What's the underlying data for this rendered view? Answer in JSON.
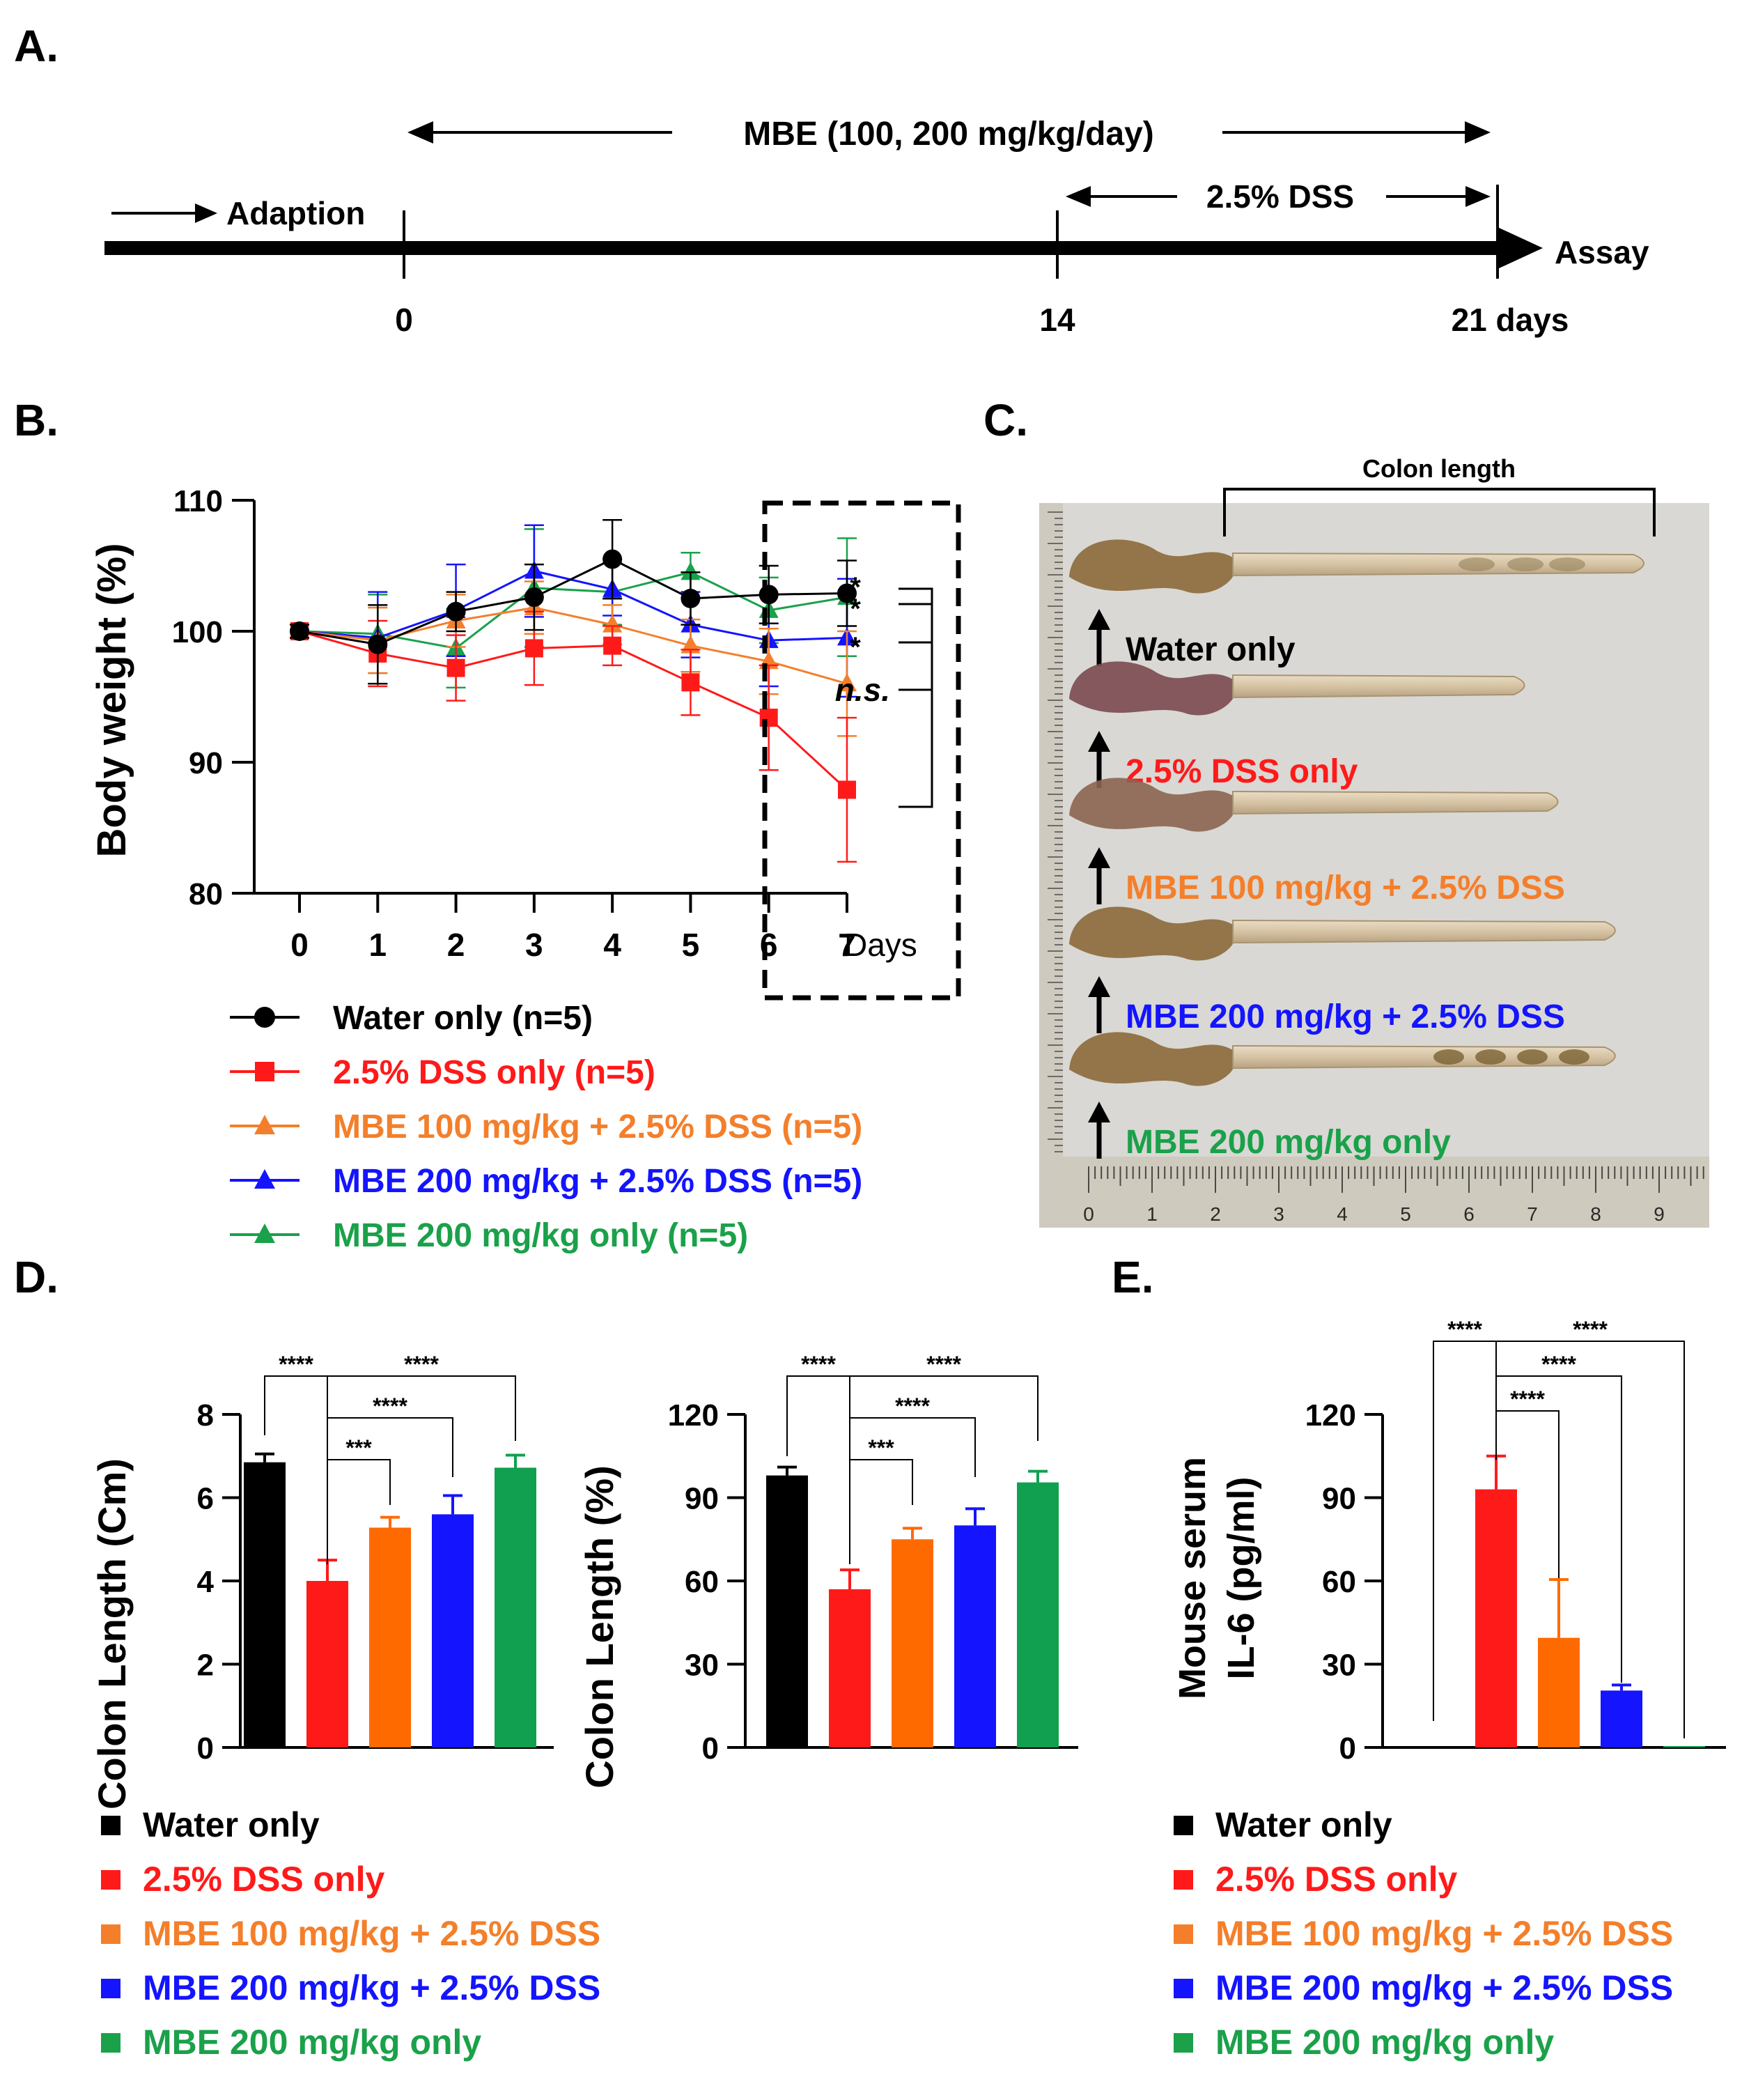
{
  "panel_labels": {
    "a": "A.",
    "b": "B.",
    "c": "C.",
    "d": "D.",
    "e": "E."
  },
  "colors": {
    "water": "#000000",
    "dss": "#ff1a1a",
    "mbe100": "#f47f2b",
    "mbe200dss": "#1414ff",
    "mbe200": "#1aa14a",
    "bar_mbe100": "#ff6a00",
    "bar_mbe200": "#10a050"
  },
  "timeline": {
    "mbe_label": "MBE (100, 200 mg/kg/day)",
    "dss_label": "2.5% DSS",
    "adaption_label": "Adaption",
    "assay_label": "Assay",
    "ticks": [
      "0",
      "14",
      "21 days"
    ]
  },
  "legend_b": [
    {
      "label": "Water only (n=5)",
      "marker": "circle",
      "color": "#000000"
    },
    {
      "label": "2.5% DSS only (n=5)",
      "marker": "square",
      "color": "#ff1a1a"
    },
    {
      "label": "MBE 100 mg/kg + 2.5% DSS (n=5)",
      "marker": "triangle",
      "color": "#f47f2b"
    },
    {
      "label": "MBE 200 mg/kg + 2.5% DSS (n=5)",
      "marker": "triangle",
      "color": "#1414ff"
    },
    {
      "label": "MBE 200 mg/kg only (n=5)",
      "marker": "triangle",
      "color": "#1aa14a"
    }
  ],
  "legend_groups": [
    {
      "label": "Water only",
      "color": "#000000"
    },
    {
      "label": "2.5% DSS only",
      "color": "#ff1a1a"
    },
    {
      "label": "MBE 100 mg/kg + 2.5% DSS",
      "color": "#f47f2b"
    },
    {
      "label": "MBE 200 mg/kg + 2.5% DSS",
      "color": "#1414ff"
    },
    {
      "label": "MBE 200 mg/kg only",
      "color": "#1aa14a"
    }
  ],
  "photo": {
    "header": "Colon length",
    "labels": [
      {
        "text": "Water only",
        "color": "#000000"
      },
      {
        "text": "2.5% DSS only",
        "color": "#ff1a1a"
      },
      {
        "text": "MBE 100 mg/kg + 2.5% DSS",
        "color": "#f47f2b"
      },
      {
        "text": "MBE 200 mg/kg + 2.5% DSS",
        "color": "#1414ff"
      },
      {
        "text": "MBE 200 mg/kg only",
        "color": "#1aa14a"
      }
    ],
    "lengths": [
      9.0,
      6.5,
      7.2,
      8.4,
      8.4
    ],
    "ruler_ticks": [
      "0",
      "1",
      "2",
      "3",
      "4",
      "5",
      "6",
      "7",
      "8",
      "9"
    ]
  },
  "chart_data": [
    {
      "id": "body_weight",
      "type": "line",
      "xlabel": "Days",
      "ylabel": "Body weight (%)",
      "x": [
        0,
        1,
        2,
        3,
        4,
        5,
        6,
        7
      ],
      "xlim": [
        0,
        7
      ],
      "ylim": [
        80,
        110
      ],
      "yticks": [
        80,
        90,
        100,
        110
      ],
      "series": [
        {
          "name": "Water only (n=5)",
          "color": "#000000",
          "marker": "circle",
          "values": [
            100,
            99.0,
            101.5,
            102.6,
            105.5,
            102.5,
            102.8,
            102.9
          ],
          "errors": [
            0.5,
            3.0,
            1.5,
            2.5,
            3.0,
            2.0,
            2.2,
            2.5
          ]
        },
        {
          "name": "2.5% DSS only (n=5)",
          "color": "#ff1a1a",
          "marker": "square",
          "values": [
            100,
            98.3,
            97.2,
            98.7,
            98.9,
            96.1,
            93.4,
            87.9
          ],
          "errors": [
            0.5,
            2.5,
            2.5,
            2.8,
            1.5,
            2.5,
            4.0,
            5.5
          ]
        },
        {
          "name": "MBE 100 mg/kg + 2.5% DSS (n=5)",
          "color": "#f47f2b",
          "marker": "triangle",
          "values": [
            100,
            99.3,
            100.8,
            101.8,
            100.5,
            98.9,
            97.7,
            96.0
          ],
          "errors": [
            0.5,
            2.5,
            2.0,
            2.0,
            1.5,
            2.0,
            2.5,
            4.0
          ]
        },
        {
          "name": "MBE 200 mg/kg + 2.5% DSS (n=5)",
          "color": "#1414ff",
          "marker": "triangle",
          "values": [
            100,
            99.5,
            101.6,
            104.6,
            103.2,
            100.5,
            99.3,
            99.5
          ],
          "errors": [
            0.5,
            3.5,
            3.5,
            3.5,
            2.0,
            2.5,
            3.5,
            4.5
          ]
        },
        {
          "name": "MBE 200 mg/kg only (n=5)",
          "color": "#1aa14a",
          "marker": "triangle",
          "values": [
            100,
            99.8,
            98.7,
            103.3,
            103.0,
            104.5,
            101.6,
            102.6
          ],
          "errors": [
            0.5,
            3.0,
            3.0,
            4.5,
            2.5,
            1.5,
            2.5,
            4.5
          ]
        }
      ],
      "significance": [
        "*",
        "*",
        "*",
        "n.s."
      ]
    },
    {
      "id": "colon_cm",
      "type": "bar",
      "ylabel": "Colon Length (Cm)",
      "ylim": [
        0,
        8
      ],
      "yticks": [
        0,
        2,
        4,
        6,
        8
      ],
      "values": [
        6.85,
        4.0,
        5.28,
        5.6,
        6.72
      ],
      "errors": [
        0.2,
        0.5,
        0.25,
        0.45,
        0.3
      ],
      "colors": [
        "#000000",
        "#ff1a1a",
        "#ff6a00",
        "#1414ff",
        "#10a050"
      ],
      "significance": [
        "****",
        "****",
        "****",
        "***"
      ]
    },
    {
      "id": "colon_pct",
      "type": "bar",
      "ylabel": "Colon Length (%)",
      "ylim": [
        0,
        120
      ],
      "yticks": [
        0,
        30,
        60,
        90,
        120
      ],
      "values": [
        98,
        57,
        75,
        80,
        95.5
      ],
      "errors": [
        3,
        7,
        4,
        6,
        4
      ],
      "colors": [
        "#000000",
        "#ff1a1a",
        "#ff6a00",
        "#1414ff",
        "#10a050"
      ],
      "significance": [
        "****",
        "****",
        "****",
        "***"
      ]
    },
    {
      "id": "il6",
      "type": "bar",
      "ylabel": "Mouse serum IL-6 (pg/ml)",
      "ylabel_lines": [
        "Mouse serum",
        "IL-6 (pg/ml)"
      ],
      "ylim": [
        0,
        120
      ],
      "yticks": [
        0,
        30,
        60,
        90,
        120
      ],
      "values": [
        0,
        93,
        39.5,
        20.5,
        0.5
      ],
      "errors": [
        0,
        12,
        21,
        2,
        0
      ],
      "colors": [
        "#000000",
        "#ff1a1a",
        "#ff6a00",
        "#1414ff",
        "#10a050"
      ],
      "significance": [
        "****",
        "****",
        "****",
        "****"
      ]
    }
  ]
}
